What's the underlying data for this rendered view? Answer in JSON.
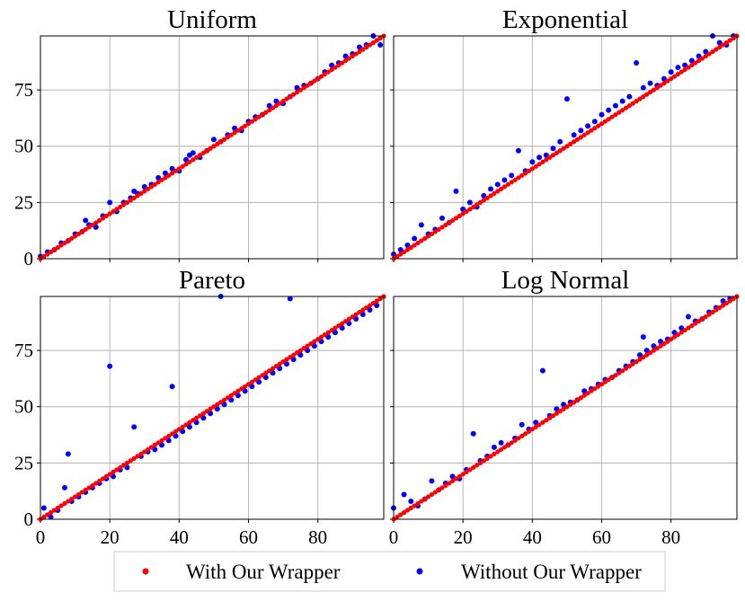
{
  "chart_data": [
    {
      "type": "scatter",
      "title": "Uniform",
      "xlim": [
        0,
        99
      ],
      "ylim": [
        0,
        99
      ],
      "xticks": [
        "0",
        "20",
        "40",
        "60",
        "80"
      ],
      "yticks": [
        "0",
        "25",
        "50",
        "75"
      ],
      "show_xticklabels": false,
      "show_yticklabels": true,
      "grid": true,
      "series": [
        {
          "name": "With Our Wrapper",
          "color": "#ff0000",
          "points": "identity line y = x for x = 0..99"
        },
        {
          "name": "Without Our Wrapper",
          "color": "#0000ff",
          "x": [
            0,
            2,
            4,
            6,
            8,
            10,
            12,
            13,
            14,
            16,
            18,
            20,
            22,
            24,
            26,
            27,
            28,
            30,
            32,
            34,
            36,
            38,
            40,
            42,
            43,
            44,
            46,
            48,
            50,
            52,
            54,
            56,
            58,
            60,
            62,
            64,
            66,
            68,
            70,
            72,
            74,
            76,
            78,
            80,
            82,
            84,
            86,
            88,
            90,
            92,
            94,
            96,
            98
          ],
          "y": [
            1,
            3,
            4,
            7,
            8,
            11,
            12,
            17,
            15,
            14,
            19,
            25,
            21,
            25,
            27,
            30,
            29,
            32,
            33,
            36,
            38,
            40,
            39,
            44,
            46,
            47,
            45,
            48,
            53,
            52,
            55,
            58,
            57,
            61,
            63,
            64,
            68,
            70,
            69,
            72,
            76,
            77,
            78,
            80,
            83,
            86,
            87,
            90,
            91,
            94,
            95,
            99,
            95
          ]
        }
      ]
    },
    {
      "type": "scatter",
      "title": "Exponential",
      "xlim": [
        0,
        99
      ],
      "ylim": [
        0,
        99
      ],
      "xticks": [
        "0",
        "20",
        "40",
        "60",
        "80"
      ],
      "yticks": [
        "0",
        "25",
        "50",
        "75"
      ],
      "show_xticklabels": false,
      "show_yticklabels": false,
      "grid": true,
      "series": [
        {
          "name": "With Our Wrapper",
          "color": "#ff0000",
          "points": "identity line y = x for x = 0..99"
        },
        {
          "name": "Without Our Wrapper",
          "color": "#0000ff",
          "x": [
            0,
            2,
            4,
            6,
            8,
            10,
            12,
            14,
            16,
            18,
            20,
            22,
            24,
            26,
            28,
            30,
            32,
            34,
            36,
            38,
            40,
            42,
            44,
            46,
            48,
            50,
            52,
            54,
            56,
            58,
            60,
            62,
            64,
            66,
            68,
            70,
            72,
            74,
            76,
            78,
            80,
            82,
            84,
            86,
            88,
            90,
            92,
            94,
            96,
            98
          ],
          "y": [
            2,
            4,
            6,
            9,
            15,
            11,
            13,
            18,
            16,
            30,
            22,
            25,
            23,
            28,
            31,
            33,
            35,
            37,
            48,
            39,
            43,
            45,
            46,
            49,
            52,
            71,
            55,
            57,
            59,
            61,
            64,
            66,
            68,
            70,
            72,
            87,
            76,
            78,
            77,
            80,
            83,
            85,
            86,
            88,
            90,
            92,
            99,
            96,
            95,
            99
          ]
        }
      ]
    },
    {
      "type": "scatter",
      "title": "Pareto",
      "xlim": [
        0,
        99
      ],
      "ylim": [
        0,
        99
      ],
      "xticks": [
        "0",
        "20",
        "40",
        "60",
        "80"
      ],
      "yticks": [
        "0",
        "25",
        "50",
        "75"
      ],
      "show_xticklabels": true,
      "show_yticklabels": true,
      "grid": true,
      "series": [
        {
          "name": "With Our Wrapper",
          "color": "#ff0000",
          "points": "identity line y = x for x = 0..99"
        },
        {
          "name": "Without Our Wrapper",
          "color": "#0000ff",
          "x": [
            1,
            3,
            5,
            7,
            8,
            9,
            11,
            13,
            15,
            17,
            19,
            20,
            21,
            23,
            25,
            27,
            29,
            31,
            33,
            35,
            37,
            38,
            39,
            41,
            43,
            45,
            47,
            49,
            51,
            52,
            53,
            55,
            57,
            59,
            61,
            63,
            65,
            67,
            69,
            71,
            72,
            73,
            75,
            77,
            79,
            81,
            83,
            85,
            87,
            89,
            91,
            93,
            95,
            97
          ],
          "y": [
            5,
            1,
            4,
            14,
            29,
            8,
            10,
            12,
            14,
            16,
            18,
            68,
            19,
            22,
            23,
            41,
            28,
            30,
            31,
            33,
            35,
            59,
            37,
            39,
            41,
            43,
            45,
            47,
            49,
            99,
            51,
            53,
            55,
            57,
            59,
            61,
            63,
            65,
            67,
            69,
            98,
            71,
            73,
            75,
            77,
            79,
            81,
            83,
            85,
            87,
            89,
            91,
            93,
            95
          ]
        }
      ]
    },
    {
      "type": "scatter",
      "title": "Log Normal",
      "xlim": [
        0,
        99
      ],
      "ylim": [
        0,
        99
      ],
      "xticks": [
        "0",
        "20",
        "40",
        "60",
        "80"
      ],
      "yticks": [
        "0",
        "25",
        "50",
        "75"
      ],
      "show_xticklabels": true,
      "show_yticklabels": false,
      "grid": true,
      "series": [
        {
          "name": "With Our Wrapper",
          "color": "#ff0000",
          "points": "identity line y = x for x = 0..99"
        },
        {
          "name": "Without Our Wrapper",
          "color": "#0000ff",
          "x": [
            0,
            3,
            5,
            7,
            9,
            11,
            13,
            15,
            17,
            19,
            21,
            23,
            25,
            27,
            29,
            31,
            33,
            35,
            37,
            39,
            41,
            43,
            45,
            47,
            49,
            51,
            53,
            55,
            57,
            59,
            61,
            63,
            65,
            67,
            69,
            71,
            72,
            73,
            75,
            77,
            79,
            81,
            83,
            85,
            87,
            89,
            91,
            93,
            95,
            97
          ],
          "y": [
            5,
            11,
            8,
            6,
            9,
            17,
            13,
            16,
            19,
            18,
            22,
            38,
            26,
            28,
            32,
            34,
            33,
            36,
            42,
            40,
            43,
            66,
            46,
            49,
            51,
            52,
            53,
            57,
            58,
            60,
            62,
            63,
            66,
            68,
            70,
            73,
            81,
            75,
            77,
            79,
            80,
            83,
            85,
            90,
            88,
            89,
            92,
            94,
            97,
            98
          ]
        }
      ]
    }
  ],
  "legend": {
    "placement": "bottom-center",
    "items": [
      {
        "label": "With Our Wrapper",
        "color": "#ff0000"
      },
      {
        "label": "Without Our Wrapper",
        "color": "#0000ff"
      }
    ]
  }
}
